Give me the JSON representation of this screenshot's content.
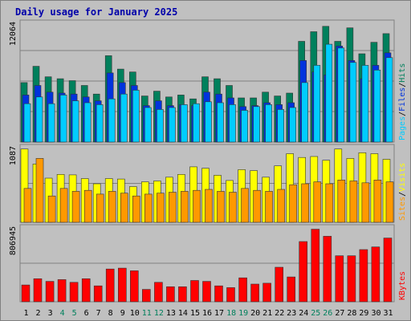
{
  "chart_data": [
    {
      "type": "bar",
      "title": "Daily usage for January 2025",
      "ylabel_max": "12064",
      "legend": [
        "Pages",
        "Files",
        "Hits"
      ],
      "series": [
        {
          "name": "Hits",
          "color": "#00805c",
          "values": [
            6200,
            7900,
            6800,
            6600,
            6400,
            5900,
            5000,
            9000,
            7600,
            7300,
            4800,
            5300,
            4700,
            4900,
            4500,
            6800,
            6600,
            5900,
            4600,
            4600,
            5200,
            4800,
            5100,
            10500,
            11500,
            12064,
            10500,
            11900,
            9200,
            10400,
            11300
          ]
        },
        {
          "name": "Files",
          "color": "#0033dd",
          "values": [
            4900,
            5900,
            5200,
            5100,
            5000,
            4700,
            4300,
            7200,
            6200,
            5900,
            3800,
            4300,
            3800,
            3900,
            3800,
            5200,
            5000,
            4600,
            3700,
            3800,
            4100,
            3900,
            4100,
            8500,
            7300,
            7000,
            10000,
            8500,
            6600,
            8000,
            9300
          ]
        },
        {
          "name": "Pages",
          "color": "#00ccff",
          "values": [
            4000,
            4700,
            4000,
            4900,
            4300,
            4100,
            3900,
            4500,
            5000,
            5400,
            3600,
            3400,
            3600,
            3900,
            4000,
            4200,
            4100,
            3900,
            3300,
            3700,
            3900,
            3400,
            3600,
            6200,
            8000,
            10200,
            9800,
            8300,
            8000,
            7500,
            8800
          ]
        }
      ]
    },
    {
      "type": "bar",
      "ylabel_max": "1087",
      "legend": [
        "Sites",
        "Visits"
      ],
      "series": [
        {
          "name": "Visits",
          "color": "#ffff00",
          "values": [
            780,
            620,
            470,
            510,
            505,
            465,
            410,
            465,
            460,
            380,
            430,
            440,
            480,
            510,
            590,
            575,
            500,
            445,
            560,
            550,
            480,
            600,
            730,
            690,
            700,
            660,
            780,
            680,
            740,
            730,
            670
          ]
        },
        {
          "name": "Sites",
          "color": "#ff9900",
          "values": [
            360,
            680,
            280,
            360,
            330,
            340,
            300,
            330,
            310,
            280,
            300,
            310,
            320,
            330,
            340,
            350,
            330,
            320,
            360,
            340,
            330,
            350,
            400,
            410,
            430,
            410,
            450,
            440,
            420,
            450,
            430
          ]
        }
      ]
    },
    {
      "type": "bar",
      "ylabel_max": "806945",
      "legend": [
        "KBytes"
      ],
      "series": [
        {
          "name": "KBytes",
          "color": "#ff0000",
          "values": [
            190000,
            260000,
            230000,
            250000,
            220000,
            260000,
            180000,
            370000,
            380000,
            350000,
            140000,
            220000,
            170000,
            170000,
            240000,
            230000,
            180000,
            160000,
            270000,
            200000,
            210000,
            390000,
            280000,
            680000,
            820000,
            740000,
            520000,
            520000,
            590000,
            620000,
            720000
          ]
        }
      ]
    }
  ],
  "x_labels": [
    "1",
    "2",
    "3",
    "4",
    "5",
    "6",
    "7",
    "8",
    "9",
    "10",
    "11",
    "12",
    "13",
    "14",
    "15",
    "16",
    "17",
    "18",
    "19",
    "20",
    "21",
    "22",
    "23",
    "24",
    "25",
    "26",
    "27",
    "28",
    "29",
    "30",
    "31"
  ],
  "weekend_days": [
    4,
    5,
    11,
    12,
    18,
    19,
    25,
    26
  ],
  "colors": {
    "title": "#0000aa",
    "weekday_label": "#000000",
    "weekend_label": "#00805c",
    "panel_bg": "#c0c0c0",
    "grid": "#808080"
  }
}
